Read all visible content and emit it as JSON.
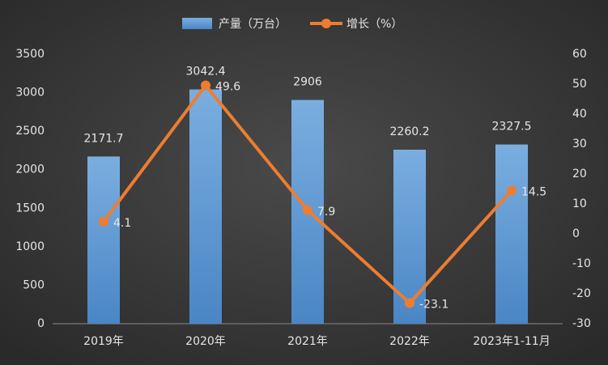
{
  "chart_data": {
    "type": "bar",
    "categories": [
      "2019年",
      "2020年",
      "2021年",
      "2022年",
      "2023年1-11月"
    ],
    "series": [
      {
        "name": "产量（万台）",
        "type": "bar",
        "color": "#5b9bd5",
        "values": [
          2171.7,
          3042.4,
          2906,
          2260.2,
          2327.5
        ]
      },
      {
        "name": "增长（%）",
        "type": "line",
        "axis": "y2",
        "color": "#ed7d31",
        "values": [
          4.1,
          49.6,
          7.9,
          -23.1,
          14.5
        ]
      }
    ],
    "ylim": [
      0,
      3500
    ],
    "yticks": [
      0,
      500,
      1000,
      1500,
      2000,
      2500,
      3000,
      3500
    ],
    "y2lim": [
      -30,
      60
    ],
    "y2ticks": [
      -30,
      -20,
      -10,
      0,
      10,
      20,
      30,
      40,
      50,
      60
    ],
    "legend": "top",
    "grid": false
  }
}
